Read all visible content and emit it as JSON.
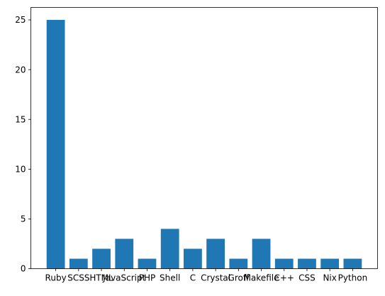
{
  "chart_data": {
    "type": "bar",
    "title": "",
    "xlabel": "",
    "ylabel": "",
    "categories": [
      "Ruby",
      "SCSS",
      "HTML",
      "JavaScript",
      "PHP",
      "Shell",
      "C",
      "Crystal",
      "Groff",
      "Makefile",
      "C++",
      "CSS",
      "Nix",
      "Python"
    ],
    "values": [
      25,
      1,
      2,
      3,
      1,
      4,
      2,
      3,
      1,
      3,
      1,
      1,
      1,
      1
    ],
    "ylim": [
      0,
      26.25
    ],
    "yticks": [
      0,
      5,
      10,
      15,
      20,
      25
    ],
    "grid": false,
    "bar_color": "#1f77b4"
  }
}
